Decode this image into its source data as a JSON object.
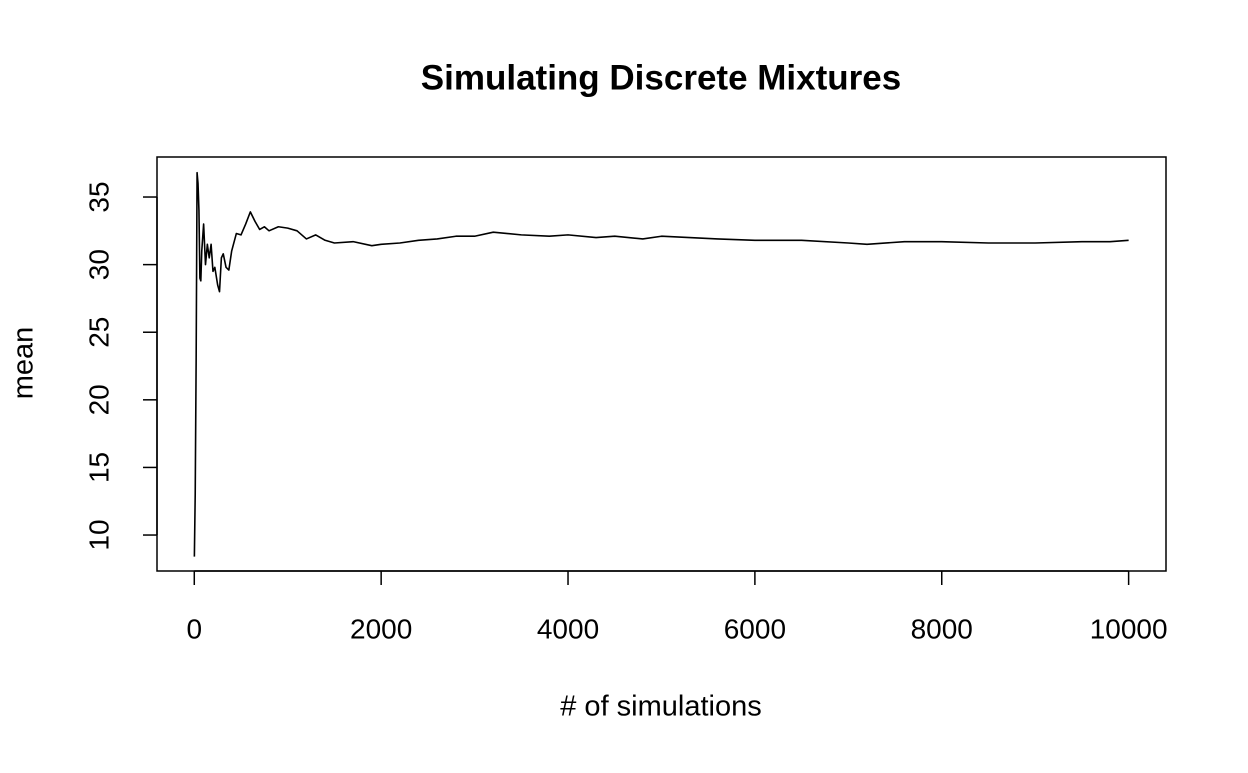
{
  "chart_data": {
    "type": "line",
    "title": "Simulating Discrete Mixtures",
    "x_label": "# of simulations",
    "y_label": "mean",
    "x": [
      1,
      10,
      20,
      30,
      40,
      50,
      60,
      70,
      80,
      100,
      120,
      140,
      160,
      180,
      200,
      220,
      250,
      270,
      290,
      310,
      340,
      370,
      400,
      450,
      500,
      550,
      600,
      650,
      700,
      750,
      800,
      900,
      1000,
      1100,
      1200,
      1300,
      1400,
      1500,
      1700,
      1900,
      2000,
      2200,
      2400,
      2600,
      2800,
      3000,
      3200,
      3500,
      3800,
      4000,
      4300,
      4500,
      4800,
      5000,
      5300,
      5600,
      6000,
      6500,
      7000,
      7200,
      7600,
      8000,
      8500,
      9000,
      9500,
      9800,
      10000
    ],
    "values": [
      8.4,
      13,
      23,
      36.8,
      36,
      34,
      29,
      28.8,
      31,
      33,
      30,
      31.5,
      30.5,
      31.5,
      29.5,
      29.8,
      28.5,
      28,
      30.5,
      30.8,
      29.8,
      29.6,
      31,
      32.3,
      32.2,
      33,
      33.9,
      33.2,
      32.6,
      32.8,
      32.5,
      32.8,
      32.7,
      32.5,
      31.9,
      32.2,
      31.8,
      31.6,
      31.7,
      31.4,
      31.5,
      31.6,
      31.8,
      31.9,
      32.1,
      32.1,
      32.4,
      32.2,
      32.1,
      32.2,
      32.0,
      32.1,
      31.9,
      32.1,
      32.0,
      31.9,
      31.8,
      31.8,
      31.6,
      31.5,
      31.7,
      31.7,
      31.6,
      31.6,
      31.7,
      31.7,
      31.8
    ],
    "color": "#000000",
    "xlim": [
      -399,
      10400
    ],
    "ylim": [
      7.34,
      37.96
    ],
    "xticks": [
      0,
      2000,
      4000,
      6000,
      8000,
      10000
    ],
    "yticks": [
      10,
      15,
      20,
      25,
      30,
      35
    ]
  }
}
